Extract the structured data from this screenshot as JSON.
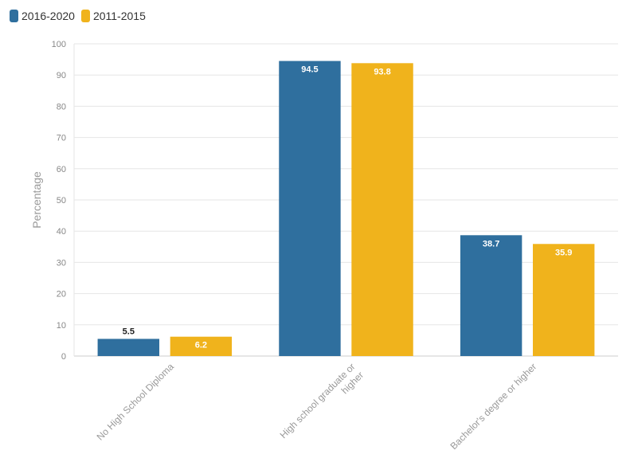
{
  "chart_data": {
    "type": "bar",
    "categories": [
      "No High School Diploma",
      "High school graduate or higher",
      "Bachelor's degree or higher"
    ],
    "category_lines": [
      [
        "No High School Diploma"
      ],
      [
        "High school graduate or",
        "higher"
      ],
      [
        "Bachelor's degree or higher"
      ]
    ],
    "series": [
      {
        "name": "2016-2020",
        "color": "#2f6f9e",
        "values": [
          5.5,
          94.5,
          38.7
        ],
        "labels": [
          "5.5",
          "94.5",
          "38.7"
        ]
      },
      {
        "name": "2011-2015",
        "color": "#f0b31c",
        "values": [
          6.2,
          93.8,
          35.9
        ],
        "labels": [
          "6.2",
          "93.8",
          "35.9"
        ]
      }
    ],
    "ylabel": "Percentage",
    "ylim": [
      0,
      100
    ],
    "yticks": [
      0,
      10,
      20,
      30,
      40,
      50,
      60,
      70,
      80,
      90,
      100
    ],
    "grid": true,
    "legend": "top-left"
  }
}
